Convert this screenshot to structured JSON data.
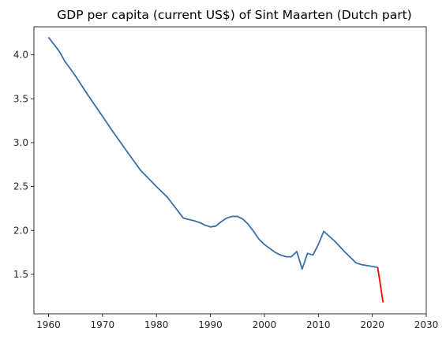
{
  "chart_data": {
    "type": "line",
    "title": "GDP per capita (current US$) of Sint Maarten (Dutch part)",
    "xlabel": "",
    "ylabel": "",
    "xlim": [
      1957.3,
      2030
    ],
    "ylim": [
      1.05,
      4.32
    ],
    "x_ticks": [
      1960,
      1970,
      1980,
      1990,
      2000,
      2010,
      2020,
      2030
    ],
    "y_ticks": [
      1.5,
      2.0,
      2.5,
      3.0,
      3.5,
      4.0
    ],
    "grid": false,
    "legend": "none",
    "series": [
      {
        "color": "#3b6ea8",
        "x": [
          1960,
          1962,
          1963,
          1965,
          1967,
          1970,
          1972,
          1975,
          1977,
          1980,
          1982,
          1985,
          1987,
          1988,
          1989,
          1990,
          1991,
          1992,
          1993,
          1994,
          1995,
          1996,
          1997,
          1998,
          1999,
          2000,
          2002,
          2003,
          2004,
          2005,
          2006,
          2007,
          2008,
          2009,
          2010,
          2011,
          2013,
          2015,
          2016,
          2017,
          2018,
          2019,
          2020,
          2021
        ],
        "y": [
          4.2,
          4.04,
          3.93,
          3.76,
          3.57,
          3.3,
          3.12,
          2.86,
          2.69,
          2.5,
          2.38,
          2.14,
          2.11,
          2.09,
          2.06,
          2.04,
          2.05,
          2.1,
          2.14,
          2.16,
          2.16,
          2.13,
          2.07,
          1.99,
          1.9,
          1.84,
          1.75,
          1.72,
          1.7,
          1.7,
          1.76,
          1.56,
          1.74,
          1.72,
          1.84,
          1.99,
          1.88,
          1.75,
          1.69,
          1.63,
          1.61,
          1.6,
          1.59,
          1.58
        ]
      },
      {
        "color": "#ff0000",
        "x": [
          2021,
          2022
        ],
        "y": [
          1.58,
          1.18
        ]
      }
    ]
  }
}
